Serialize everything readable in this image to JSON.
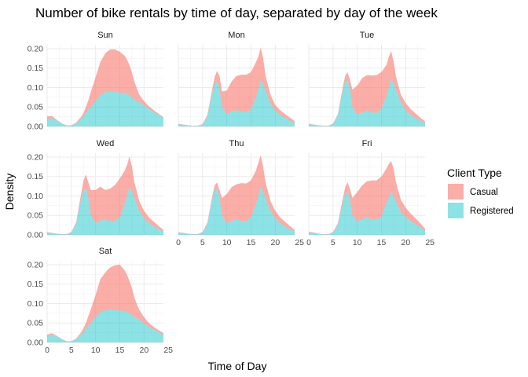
{
  "chart_data": {
    "type": "area",
    "title": "Number of bike rentals by time of day, separated by day of the week",
    "xlabel": "Time of Day",
    "ylabel": "Density",
    "xlim": [
      0,
      24
    ],
    "ylim": [
      0,
      0.21
    ],
    "x_ticks": [
      "0",
      "5",
      "10",
      "15",
      "20",
      "25"
    ],
    "y_ticks": [
      "0.00",
      "0.05",
      "0.10",
      "0.15",
      "0.20"
    ],
    "grid": true,
    "stacked": true,
    "legend": {
      "title": "Client Type",
      "position": "right",
      "entries": [
        {
          "label": "Casual",
          "color": "#F8766D"
        },
        {
          "label": "Registered",
          "color": "#00BFC4"
        }
      ]
    },
    "x": [
      0,
      1,
      2,
      3,
      4,
      5,
      6,
      7,
      7.5,
      8,
      8.5,
      9,
      10,
      11,
      12,
      13,
      14,
      15,
      16,
      16.5,
      17,
      17.5,
      18,
      19,
      20,
      21,
      22,
      23,
      24
    ],
    "panels": [
      {
        "name": "Sun",
        "series": [
          {
            "name": "Registered",
            "values": [
              0.018,
              0.022,
              0.015,
              0.007,
              0.002,
              0.002,
              0.008,
              0.02,
              0.027,
              0.035,
              0.042,
              0.05,
              0.065,
              0.08,
              0.088,
              0.09,
              0.088,
              0.087,
              0.086,
              0.083,
              0.08,
              0.075,
              0.07,
              0.062,
              0.055,
              0.045,
              0.037,
              0.03,
              0.022
            ]
          },
          {
            "name": "Casual",
            "values": [
              0.008,
              0.005,
              0.002,
              0.001,
              0.001,
              0.001,
              0.002,
              0.005,
              0.008,
              0.015,
              0.025,
              0.038,
              0.062,
              0.086,
              0.1,
              0.108,
              0.11,
              0.105,
              0.096,
              0.088,
              0.078,
              0.064,
              0.045,
              0.02,
              0.01,
              0.007,
              0.005,
              0.003,
              0.002
            ]
          }
        ]
      },
      {
        "name": "Mon",
        "series": [
          {
            "name": "Registered",
            "values": [
              0.006,
              0.004,
              0.002,
              0.001,
              0.001,
              0.004,
              0.025,
              0.085,
              0.11,
              0.118,
              0.095,
              0.05,
              0.032,
              0.038,
              0.042,
              0.038,
              0.036,
              0.045,
              0.075,
              0.095,
              0.118,
              0.11,
              0.09,
              0.06,
              0.04,
              0.03,
              0.022,
              0.015,
              0.008
            ]
          },
          {
            "name": "Casual",
            "values": [
              0.001,
              0.001,
              0.001,
              0.001,
              0.001,
              0.002,
              0.005,
              0.012,
              0.018,
              0.025,
              0.035,
              0.04,
              0.06,
              0.078,
              0.088,
              0.095,
              0.097,
              0.095,
              0.09,
              0.085,
              0.085,
              0.065,
              0.04,
              0.022,
              0.015,
              0.012,
              0.01,
              0.008,
              0.006
            ]
          }
        ]
      },
      {
        "name": "Tue",
        "series": [
          {
            "name": "Registered",
            "values": [
              0.006,
              0.004,
              0.002,
              0.001,
              0.001,
              0.005,
              0.028,
              0.09,
              0.115,
              0.12,
              0.095,
              0.05,
              0.03,
              0.036,
              0.04,
              0.036,
              0.035,
              0.045,
              0.078,
              0.1,
              0.122,
              0.112,
              0.092,
              0.062,
              0.042,
              0.03,
              0.022,
              0.015,
              0.008
            ]
          },
          {
            "name": "Casual",
            "values": [
              0.001,
              0.001,
              0.001,
              0.001,
              0.001,
              0.002,
              0.004,
              0.01,
              0.015,
              0.02,
              0.025,
              0.045,
              0.075,
              0.088,
              0.092,
              0.095,
              0.097,
              0.095,
              0.08,
              0.078,
              0.072,
              0.055,
              0.036,
              0.02,
              0.018,
              0.015,
              0.012,
              0.008,
              0.005
            ]
          }
        ]
      },
      {
        "name": "Wed",
        "series": [
          {
            "name": "Registered",
            "values": [
              0.006,
              0.004,
              0.002,
              0.001,
              0.001,
              0.005,
              0.028,
              0.09,
              0.115,
              0.12,
              0.095,
              0.05,
              0.03,
              0.036,
              0.04,
              0.036,
              0.035,
              0.045,
              0.078,
              0.1,
              0.122,
              0.112,
              0.092,
              0.062,
              0.042,
              0.03,
              0.022,
              0.015,
              0.008
            ]
          },
          {
            "name": "Casual",
            "values": [
              0.001,
              0.001,
              0.001,
              0.001,
              0.001,
              0.002,
              0.005,
              0.015,
              0.025,
              0.035,
              0.04,
              0.065,
              0.085,
              0.088,
              0.075,
              0.083,
              0.093,
              0.1,
              0.087,
              0.08,
              0.08,
              0.063,
              0.043,
              0.025,
              0.02,
              0.015,
              0.012,
              0.008,
              0.005
            ]
          }
        ]
      },
      {
        "name": "Thu",
        "series": [
          {
            "name": "Registered",
            "values": [
              0.006,
              0.004,
              0.002,
              0.001,
              0.001,
              0.005,
              0.028,
              0.09,
              0.115,
              0.12,
              0.095,
              0.05,
              0.03,
              0.036,
              0.04,
              0.036,
              0.035,
              0.045,
              0.078,
              0.1,
              0.122,
              0.112,
              0.092,
              0.062,
              0.042,
              0.03,
              0.022,
              0.015,
              0.008
            ]
          },
          {
            "name": "Casual",
            "values": [
              0.001,
              0.001,
              0.001,
              0.001,
              0.001,
              0.002,
              0.004,
              0.01,
              0.012,
              0.015,
              0.02,
              0.045,
              0.075,
              0.087,
              0.09,
              0.097,
              0.097,
              0.095,
              0.087,
              0.085,
              0.083,
              0.063,
              0.043,
              0.025,
              0.02,
              0.015,
              0.012,
              0.008,
              0.005
            ]
          }
        ]
      },
      {
        "name": "Fri",
        "series": [
          {
            "name": "Registered",
            "values": [
              0.006,
              0.004,
              0.002,
              0.001,
              0.001,
              0.005,
              0.025,
              0.08,
              0.105,
              0.112,
              0.09,
              0.05,
              0.035,
              0.04,
              0.045,
              0.04,
              0.038,
              0.048,
              0.08,
              0.095,
              0.11,
              0.1,
              0.085,
              0.058,
              0.045,
              0.035,
              0.028,
              0.02,
              0.01
            ]
          },
          {
            "name": "Casual",
            "values": [
              0.002,
              0.002,
              0.001,
              0.001,
              0.001,
              0.002,
              0.005,
              0.012,
              0.017,
              0.023,
              0.028,
              0.045,
              0.075,
              0.087,
              0.093,
              0.1,
              0.102,
              0.102,
              0.09,
              0.087,
              0.08,
              0.07,
              0.05,
              0.032,
              0.025,
              0.02,
              0.015,
              0.01,
              0.006
            ]
          }
        ]
      },
      {
        "name": "Sat",
        "series": [
          {
            "name": "Registered",
            "values": [
              0.015,
              0.02,
              0.015,
              0.008,
              0.002,
              0.002,
              0.008,
              0.02,
              0.027,
              0.035,
              0.042,
              0.05,
              0.065,
              0.078,
              0.082,
              0.085,
              0.083,
              0.082,
              0.08,
              0.078,
              0.075,
              0.07,
              0.065,
              0.058,
              0.05,
              0.04,
              0.033,
              0.027,
              0.02
            ]
          },
          {
            "name": "Casual",
            "values": [
              0.005,
              0.004,
              0.002,
              0.001,
              0.001,
              0.001,
              0.002,
              0.006,
              0.01,
              0.015,
              0.025,
              0.035,
              0.057,
              0.085,
              0.098,
              0.108,
              0.115,
              0.118,
              0.105,
              0.095,
              0.083,
              0.07,
              0.05,
              0.026,
              0.015,
              0.01,
              0.007,
              0.005,
              0.004
            ]
          }
        ]
      }
    ]
  }
}
